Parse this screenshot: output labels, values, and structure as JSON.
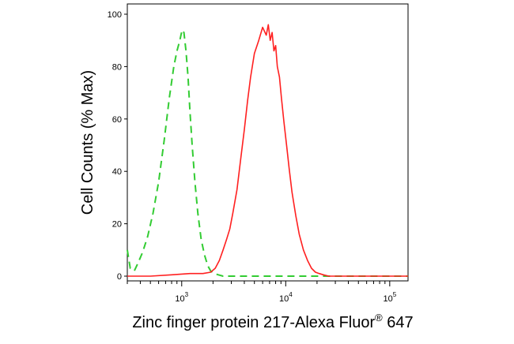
{
  "chart_data": {
    "type": "line",
    "title": "",
    "xlabel": "Zinc finger protein 217-Alexa Fluor",
    "xlabel_superscript": "®",
    "xlabel_suffix": " 647",
    "ylabel": "Cell Counts (% Max)",
    "x_scale": "log",
    "xlim": [
      300,
      150000
    ],
    "ylim": [
      0,
      100
    ],
    "y_ticks": [
      0,
      20,
      40,
      60,
      80,
      100
    ],
    "x_ticks": [
      {
        "value": 1000,
        "base": "10",
        "exp": "3"
      },
      {
        "value": 10000,
        "base": "10",
        "exp": "4"
      },
      {
        "value": 100000,
        "base": "10",
        "exp": "5"
      }
    ],
    "grid": false,
    "legend": "none",
    "series": [
      {
        "style": "dashed",
        "color": "#33cc33",
        "x": [
          300,
          320,
          350,
          380,
          420,
          470,
          530,
          600,
          680,
          760,
          840,
          900,
          960,
          1010,
          1050,
          1100,
          1150,
          1200,
          1260,
          1340,
          1430,
          1540,
          1660,
          1780,
          1900,
          2050,
          2250,
          2500,
          3000,
          5000,
          10000,
          20000,
          50000,
          150000
        ],
        "values": [
          10,
          3,
          2,
          5,
          9,
          15,
          24,
          36,
          52,
          68,
          80,
          86,
          90,
          94,
          93,
          86,
          76,
          63,
          50,
          36,
          24,
          14,
          8,
          4,
          2,
          1,
          0.5,
          0,
          0,
          0,
          0,
          0,
          0,
          0
        ]
      },
      {
        "style": "solid",
        "color": "#ff2020",
        "x": [
          300,
          500,
          800,
          1200,
          1600,
          1900,
          2100,
          2300,
          2500,
          2700,
          2900,
          3100,
          3400,
          3700,
          4000,
          4300,
          4600,
          5000,
          5500,
          6000,
          6500,
          6800,
          7100,
          7400,
          7700,
          8000,
          8300,
          8700,
          9100,
          9600,
          10200,
          10800,
          11500,
          12500,
          13500,
          14800,
          16200,
          17700,
          19300,
          21000,
          23000,
          26000,
          30000,
          40000,
          60000,
          150000
        ],
        "values": [
          0,
          0,
          0.5,
          1,
          1,
          1.5,
          3,
          6,
          10,
          14,
          18,
          24,
          33,
          45,
          56,
          67,
          76,
          85,
          90,
          95,
          92,
          96,
          90,
          93,
          86,
          88,
          80,
          76,
          68,
          59,
          50,
          41,
          32,
          23,
          16,
          10,
          6,
          3,
          1.5,
          1,
          0.5,
          0,
          0,
          0,
          0,
          0
        ]
      }
    ]
  }
}
